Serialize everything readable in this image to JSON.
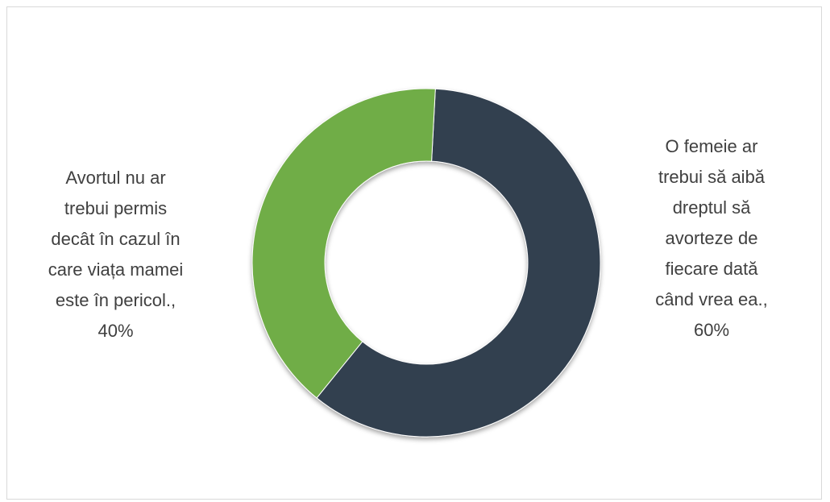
{
  "chart_data": {
    "type": "pie",
    "variant": "doughnut",
    "title": "",
    "slices": [
      {
        "label": "O femeie ar trebui să aibă dreptul să avorteze de fiecare dată când vrea ea.",
        "value": 60,
        "display": "O femeie ar\ntrebui să aibă\ndreptul să\navorteze de\nfiecare dată\ncând vrea ea.,\n60%",
        "color": "#333f50"
      },
      {
        "label": "Avortul nu ar trebui permis decât în cazul în care viața mamei este în pericol.",
        "value": 40,
        "display": "Avortul nu ar\ntrebui permis\ndecât în cazul în\ncare viața mamei\neste în pericol.,\n40%",
        "color": "#70ad47"
      }
    ],
    "start_angle_deg": 3,
    "direction": "clockwise",
    "legend": "none",
    "data_labels": "outside"
  }
}
